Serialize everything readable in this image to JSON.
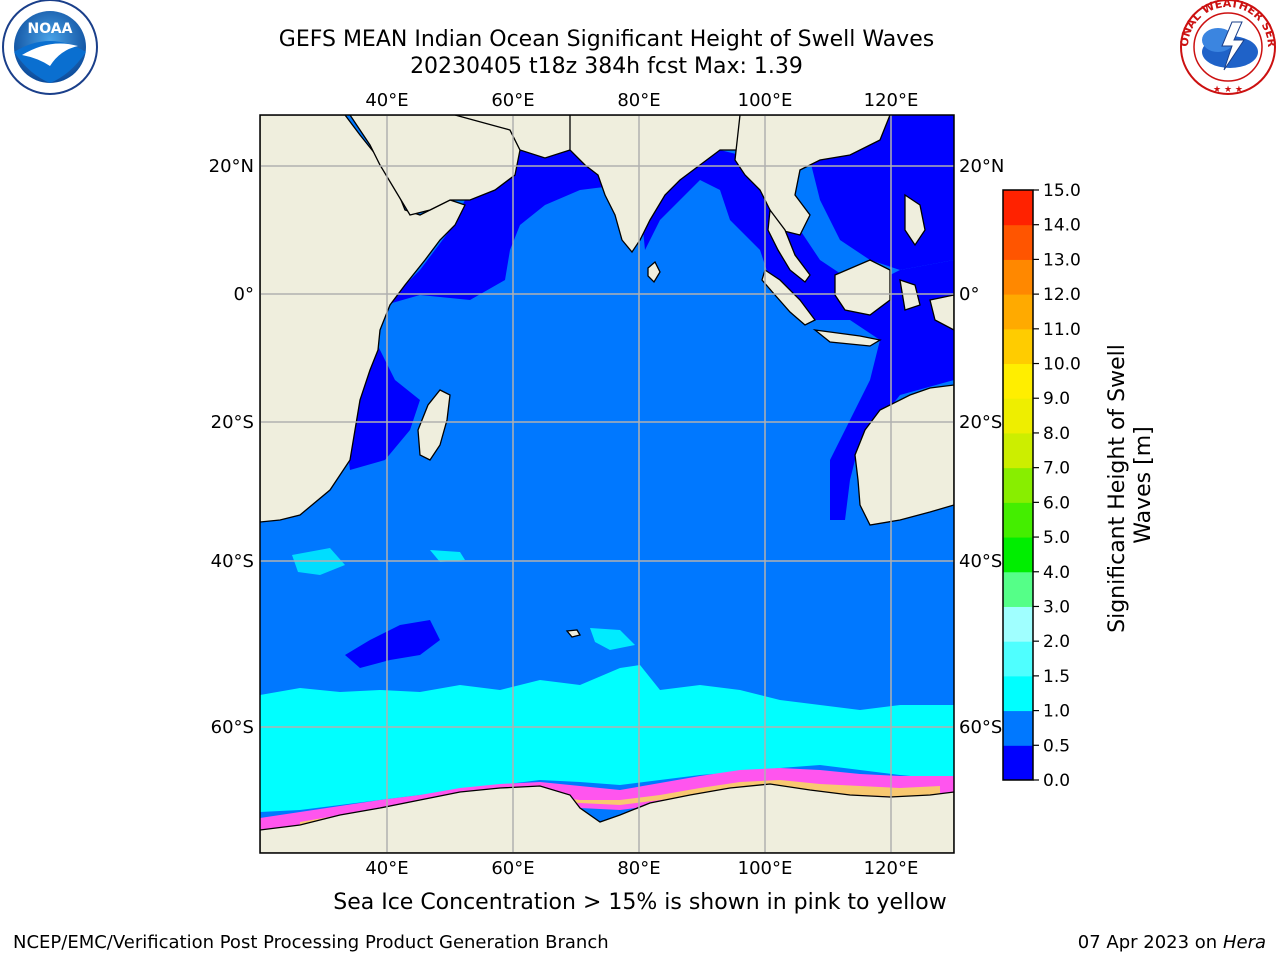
{
  "title": {
    "line1": "GEFS MEAN Indian Ocean Significant Height of Swell Waves",
    "line2": "20230405 t18z 384h fcst   Max: 1.39"
  },
  "logos": {
    "left": {
      "name": "noaa-logo",
      "text": "NOAA"
    },
    "right": {
      "name": "nws-logo",
      "text": "NATIONAL WEATHER SERVICE"
    }
  },
  "map": {
    "lon_ticks": [
      "40°E",
      "60°E",
      "80°E",
      "100°E",
      "120°E"
    ],
    "lat_ticks_left": [
      "20°N",
      "0°",
      "20°S",
      "40°S",
      "60°S"
    ],
    "lat_ticks_right": [
      "20°N",
      "0°",
      "20°S",
      "40°S",
      "60°S"
    ],
    "colors": {
      "land": "#efeedd",
      "ocean_0_05": "#0000ff",
      "ocean_05_10": "#0078ff",
      "ocean_10_15": "#00ffff",
      "ice_pink": "#ff55ee",
      "ice_yellow": "#f8c870",
      "grid": "#b0b0b0"
    }
  },
  "colorbar": {
    "label_line1": "Significant Height of Swell",
    "label_line2": "Waves [m]",
    "ticks": [
      "0.0",
      "0.5",
      "1.0",
      "1.5",
      "2.0",
      "3.0",
      "4.0",
      "5.0",
      "6.0",
      "7.0",
      "8.0",
      "9.0",
      "10.0",
      "11.0",
      "12.0",
      "13.0",
      "14.0",
      "15.0"
    ],
    "colors": [
      "#0000ff",
      "#0078ff",
      "#00ffff",
      "#4fffff",
      "#a0ffff",
      "#55ff88",
      "#00ee00",
      "#44ee00",
      "#88ee00",
      "#ccee00",
      "#eeee00",
      "#ffee00",
      "#ffcc00",
      "#ffaa00",
      "#ff8800",
      "#ff5500",
      "#ff2200"
    ]
  },
  "caption": "Sea Ice Concentration > 15% is shown in pink to yellow",
  "footer": {
    "left": "NCEP/EMC/Verification Post Processing Product Generation Branch",
    "right_date": "07 Apr 2023 on ",
    "right_host": "Hera"
  }
}
